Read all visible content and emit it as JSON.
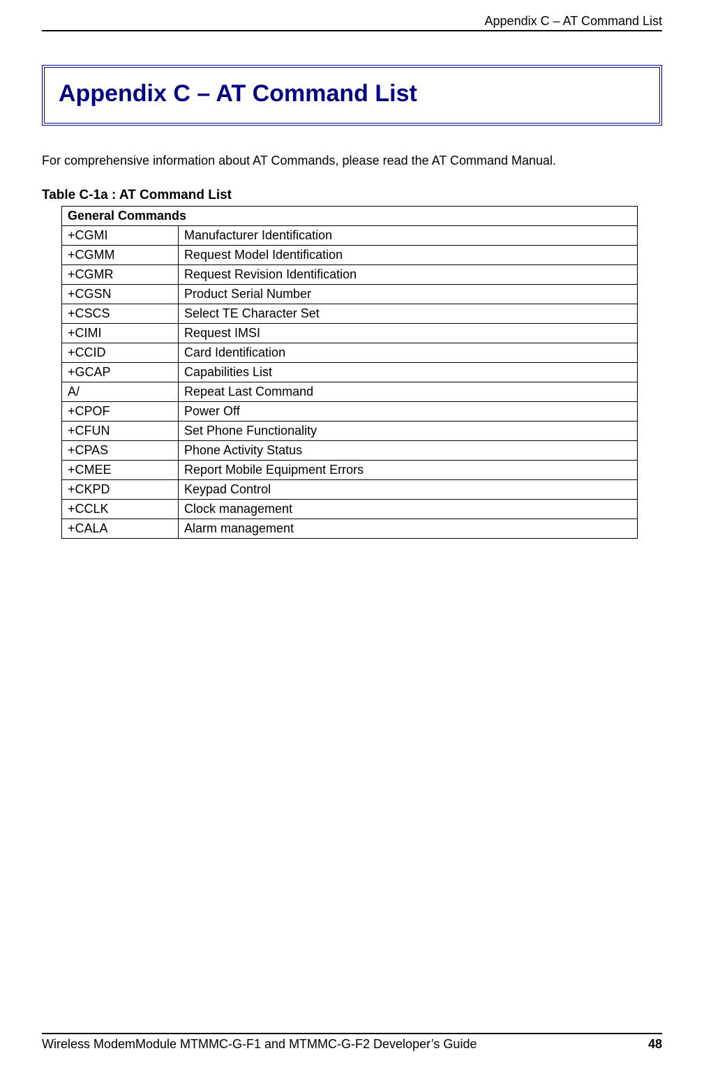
{
  "header": {
    "running_title": "Appendix C – AT Command List"
  },
  "title": "Appendix C – AT Command List",
  "intro": "For comprehensive information about AT Commands, please read the AT Command Manual.",
  "table": {
    "caption": "Table C-1a : AT Command List",
    "section_header": "General Commands",
    "rows": [
      {
        "cmd": "+CGMI",
        "desc": "Manufacturer Identification"
      },
      {
        "cmd": "+CGMM",
        "desc": "Request Model Identification"
      },
      {
        "cmd": "+CGMR",
        "desc": "Request Revision Identification"
      },
      {
        "cmd": "+CGSN",
        "desc": "Product Serial Number"
      },
      {
        "cmd": "+CSCS",
        "desc": "Select TE Character Set"
      },
      {
        "cmd": "+CIMI",
        "desc": "Request IMSI"
      },
      {
        "cmd": "+CCID",
        "desc": "Card Identification"
      },
      {
        "cmd": "+GCAP",
        "desc": "Capabilities List"
      },
      {
        "cmd": "A/",
        "desc": "Repeat Last Command"
      },
      {
        "cmd": "+CPOF",
        "desc": "Power Off"
      },
      {
        "cmd": "+CFUN",
        "desc": "Set Phone Functionality"
      },
      {
        "cmd": "+CPAS",
        "desc": "Phone Activity Status"
      },
      {
        "cmd": "+CMEE",
        "desc": "Report Mobile Equipment Errors"
      },
      {
        "cmd": "+CKPD",
        "desc": "Keypad Control"
      },
      {
        "cmd": "+CCLK",
        "desc": "Clock management"
      },
      {
        "cmd": "+CALA",
        "desc": "Alarm management"
      }
    ]
  },
  "footer": {
    "guide_title": "Wireless ModemModule MTMMC-G-F1 and MTMMC-G-F2 Developer’s Guide",
    "page_number": "48"
  },
  "colors": {
    "title_color": "#000080",
    "border_color": "#000000",
    "text_color": "#000000",
    "background": "#ffffff"
  },
  "typography": {
    "title_fontsize_pt": 26,
    "body_fontsize_pt": 13,
    "caption_fontsize_pt": 14,
    "font_family": "Arial"
  }
}
